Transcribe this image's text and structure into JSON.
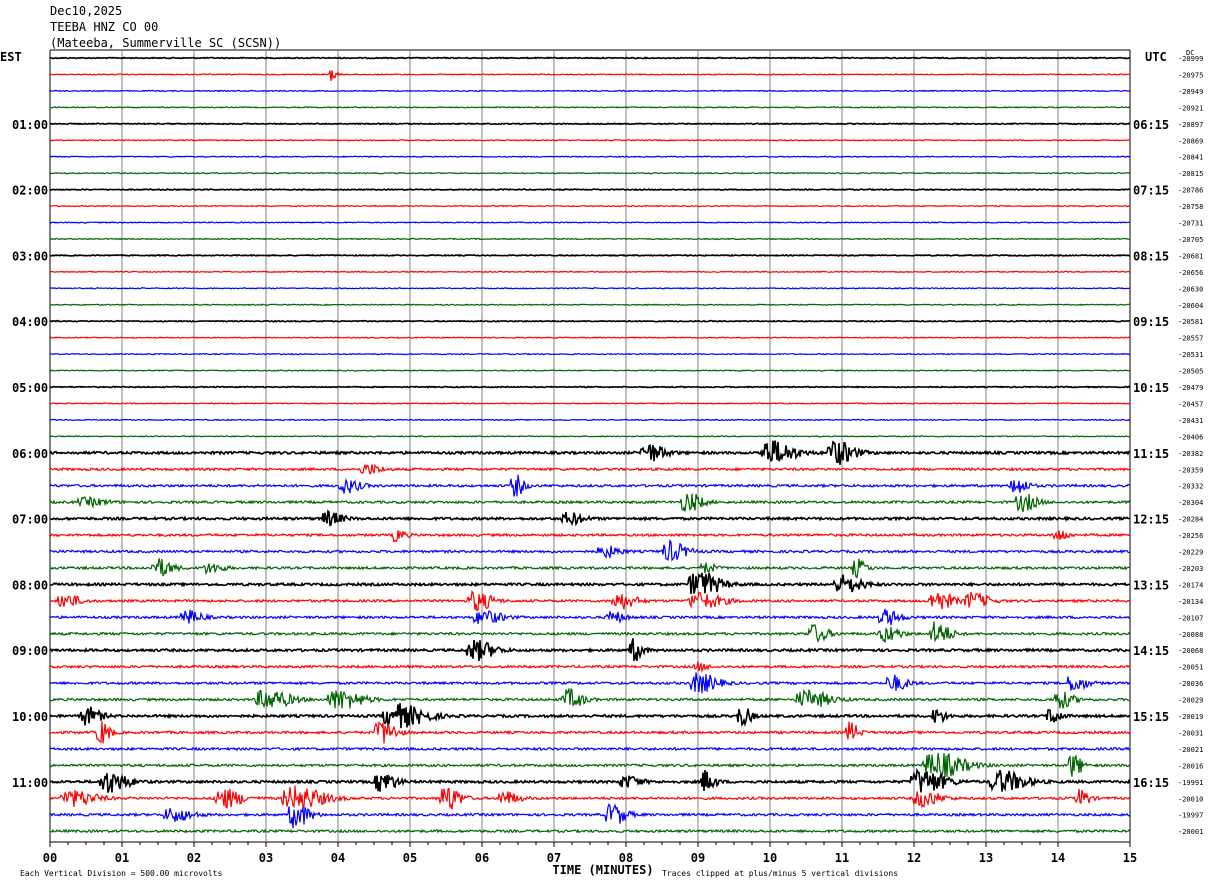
{
  "header": {
    "date": "Dec10,2025",
    "station": "TEEBA HNZ CO 00",
    "location": "(Mateeba, Summerville SC (SCSN))"
  },
  "chart_data": {
    "type": "helicorder",
    "left_timezone": "EST",
    "right_timezone": "UTC",
    "dc_label": "DC",
    "xlabel": "TIME (MINUTES)",
    "x_ticks": [
      "00",
      "01",
      "02",
      "03",
      "04",
      "05",
      "06",
      "07",
      "08",
      "09",
      "10",
      "11",
      "12",
      "13",
      "14",
      "15"
    ],
    "xlim": [
      0,
      15
    ],
    "left_hour_labels": [
      "01:00",
      "02:00",
      "03:00",
      "04:00",
      "05:00",
      "06:00",
      "07:00",
      "08:00",
      "09:00",
      "10:00",
      "11:00"
    ],
    "right_hour_labels": [
      "06:15",
      "07:15",
      "08:15",
      "09:15",
      "10:15",
      "11:15",
      "12:15",
      "13:15",
      "14:15",
      "15:15",
      "16:15"
    ],
    "dc_offsets": [
      "-20999",
      "-20975",
      "-20949",
      "-20921",
      "-20897",
      "-20869",
      "-20841",
      "-20815",
      "-20786",
      "-20758",
      "-20731",
      "-20705",
      "-20681",
      "-20656",
      "-20630",
      "-20604",
      "-20581",
      "-20557",
      "-20531",
      "-20505",
      "-20479",
      "-20457",
      "-20431",
      "-20406",
      "-20382",
      "-20359",
      "-20332",
      "-20304",
      "-20284",
      "-20256",
      "-20229",
      "-20203",
      "-20174",
      "-20134",
      "-20107",
      "-20088",
      "-20068",
      "-20051",
      "-20036",
      "-20029",
      "-20019",
      "-20031",
      "-20021",
      "-20016",
      "-19991",
      "-20010",
      "-19997",
      "-20001"
    ],
    "trace_colors": [
      "#000000",
      "#ff0000",
      "#0000ff",
      "#006400"
    ],
    "grid": true,
    "footer_scale": "Each Vertical Division =  500.00 microvolts",
    "footer_clip": "Traces clipped at plus/minus 5 vertical divisions",
    "events": [
      {
        "row": 1,
        "minute": 3.9,
        "amp": 6,
        "width": 0.12
      },
      {
        "row": 24,
        "minute": 8.3,
        "amp": 9,
        "width": 0.35
      },
      {
        "row": 24,
        "minute": 10.0,
        "amp": 12,
        "width": 0.5
      },
      {
        "row": 24,
        "minute": 10.9,
        "amp": 12,
        "width": 0.4
      },
      {
        "row": 25,
        "minute": 4.4,
        "amp": 5,
        "width": 0.3
      },
      {
        "row": 26,
        "minute": 4.1,
        "amp": 7,
        "width": 0.3
      },
      {
        "row": 26,
        "minute": 6.45,
        "amp": 11,
        "width": 0.2
      },
      {
        "row": 26,
        "minute": 13.4,
        "amp": 9,
        "width": 0.25
      },
      {
        "row": 27,
        "minute": 8.85,
        "amp": 10,
        "width": 0.3
      },
      {
        "row": 27,
        "minute": 13.5,
        "amp": 9,
        "width": 0.3
      },
      {
        "row": 27,
        "minute": 0.5,
        "amp": 4,
        "width": 0.4
      },
      {
        "row": 28,
        "minute": 3.85,
        "amp": 7,
        "width": 0.3
      },
      {
        "row": 28,
        "minute": 7.2,
        "amp": 6,
        "width": 0.3
      },
      {
        "row": 29,
        "minute": 4.8,
        "amp": 6,
        "width": 0.2
      },
      {
        "row": 29,
        "minute": 14.0,
        "amp": 6,
        "width": 0.2
      },
      {
        "row": 30,
        "minute": 7.7,
        "amp": 6,
        "width": 0.3
      },
      {
        "row": 30,
        "minute": 8.6,
        "amp": 10,
        "width": 0.35
      },
      {
        "row": 31,
        "minute": 1.5,
        "amp": 9,
        "width": 0.3
      },
      {
        "row": 31,
        "minute": 2.2,
        "amp": 5,
        "width": 0.3
      },
      {
        "row": 31,
        "minute": 11.2,
        "amp": 9,
        "width": 0.2
      },
      {
        "row": 31,
        "minute": 9.1,
        "amp": 5,
        "width": 0.2
      },
      {
        "row": 32,
        "minute": 9.0,
        "amp": 13,
        "width": 0.45
      },
      {
        "row": 32,
        "minute": 11.0,
        "amp": 9,
        "width": 0.4
      },
      {
        "row": 33,
        "minute": 0.2,
        "amp": 7,
        "width": 0.3
      },
      {
        "row": 33,
        "minute": 5.9,
        "amp": 10,
        "width": 0.35
      },
      {
        "row": 33,
        "minute": 7.9,
        "amp": 8,
        "width": 0.35
      },
      {
        "row": 33,
        "minute": 9.0,
        "amp": 8,
        "width": 0.5
      },
      {
        "row": 33,
        "minute": 12.3,
        "amp": 10,
        "width": 0.35
      },
      {
        "row": 33,
        "minute": 12.8,
        "amp": 8,
        "width": 0.35
      },
      {
        "row": 34,
        "minute": 1.9,
        "amp": 7,
        "width": 0.3
      },
      {
        "row": 34,
        "minute": 6.0,
        "amp": 7,
        "width": 0.4
      },
      {
        "row": 34,
        "minute": 11.6,
        "amp": 8,
        "width": 0.3
      },
      {
        "row": 34,
        "minute": 7.8,
        "amp": 6,
        "width": 0.25
      },
      {
        "row": 35,
        "minute": 10.6,
        "amp": 9,
        "width": 0.3
      },
      {
        "row": 35,
        "minute": 11.6,
        "amp": 8,
        "width": 0.3
      },
      {
        "row": 35,
        "minute": 12.3,
        "amp": 12,
        "width": 0.3
      },
      {
        "row": 36,
        "minute": 5.9,
        "amp": 10,
        "width": 0.4
      },
      {
        "row": 36,
        "minute": 8.1,
        "amp": 11,
        "width": 0.2
      },
      {
        "row": 37,
        "minute": 9.0,
        "amp": 4,
        "width": 0.2
      },
      {
        "row": 38,
        "minute": 9.0,
        "amp": 10,
        "width": 0.4
      },
      {
        "row": 38,
        "minute": 11.7,
        "amp": 8,
        "width": 0.3
      },
      {
        "row": 38,
        "minute": 14.2,
        "amp": 8,
        "width": 0.3
      },
      {
        "row": 39,
        "minute": 3.0,
        "amp": 10,
        "width": 0.5
      },
      {
        "row": 39,
        "minute": 4.0,
        "amp": 10,
        "width": 0.5
      },
      {
        "row": 39,
        "minute": 7.2,
        "amp": 10,
        "width": 0.3
      },
      {
        "row": 39,
        "minute": 10.5,
        "amp": 9,
        "width": 0.5
      },
      {
        "row": 39,
        "minute": 14.0,
        "amp": 9,
        "width": 0.3
      },
      {
        "row": 40,
        "minute": 0.5,
        "amp": 9,
        "width": 0.3
      },
      {
        "row": 40,
        "minute": 4.8,
        "amp": 12,
        "width": 0.6
      },
      {
        "row": 40,
        "minute": 9.6,
        "amp": 10,
        "width": 0.2
      },
      {
        "row": 40,
        "minute": 12.3,
        "amp": 7,
        "width": 0.2
      },
      {
        "row": 40,
        "minute": 13.9,
        "amp": 8,
        "width": 0.2
      },
      {
        "row": 41,
        "minute": 0.7,
        "amp": 12,
        "width": 0.2
      },
      {
        "row": 41,
        "minute": 4.6,
        "amp": 12,
        "width": 0.3
      },
      {
        "row": 41,
        "minute": 11.1,
        "amp": 10,
        "width": 0.2
      },
      {
        "row": 43,
        "minute": 12.3,
        "amp": 13,
        "width": 0.6
      },
      {
        "row": 43,
        "minute": 14.2,
        "amp": 12,
        "width": 0.2
      },
      {
        "row": 44,
        "minute": 0.8,
        "amp": 11,
        "width": 0.4
      },
      {
        "row": 44,
        "minute": 4.6,
        "amp": 10,
        "width": 0.3
      },
      {
        "row": 44,
        "minute": 9.1,
        "amp": 11,
        "width": 0.2
      },
      {
        "row": 44,
        "minute": 12.1,
        "amp": 12,
        "width": 0.5
      },
      {
        "row": 44,
        "minute": 13.2,
        "amp": 11,
        "width": 0.5
      },
      {
        "row": 44,
        "minute": 8.0,
        "amp": 6,
        "width": 0.3
      },
      {
        "row": 45,
        "minute": 0.3,
        "amp": 8,
        "width": 0.5
      },
      {
        "row": 45,
        "minute": 2.4,
        "amp": 10,
        "width": 0.4
      },
      {
        "row": 45,
        "minute": 3.4,
        "amp": 12,
        "width": 0.6
      },
      {
        "row": 45,
        "minute": 5.5,
        "amp": 13,
        "width": 0.3
      },
      {
        "row": 45,
        "minute": 6.3,
        "amp": 7,
        "width": 0.3
      },
      {
        "row": 45,
        "minute": 12.1,
        "amp": 8,
        "width": 0.4
      },
      {
        "row": 45,
        "minute": 14.3,
        "amp": 9,
        "width": 0.2
      },
      {
        "row": 46,
        "minute": 1.7,
        "amp": 7,
        "width": 0.4
      },
      {
        "row": 46,
        "minute": 3.4,
        "amp": 13,
        "width": 0.3
      },
      {
        "row": 46,
        "minute": 7.8,
        "amp": 11,
        "width": 0.3
      }
    ]
  }
}
